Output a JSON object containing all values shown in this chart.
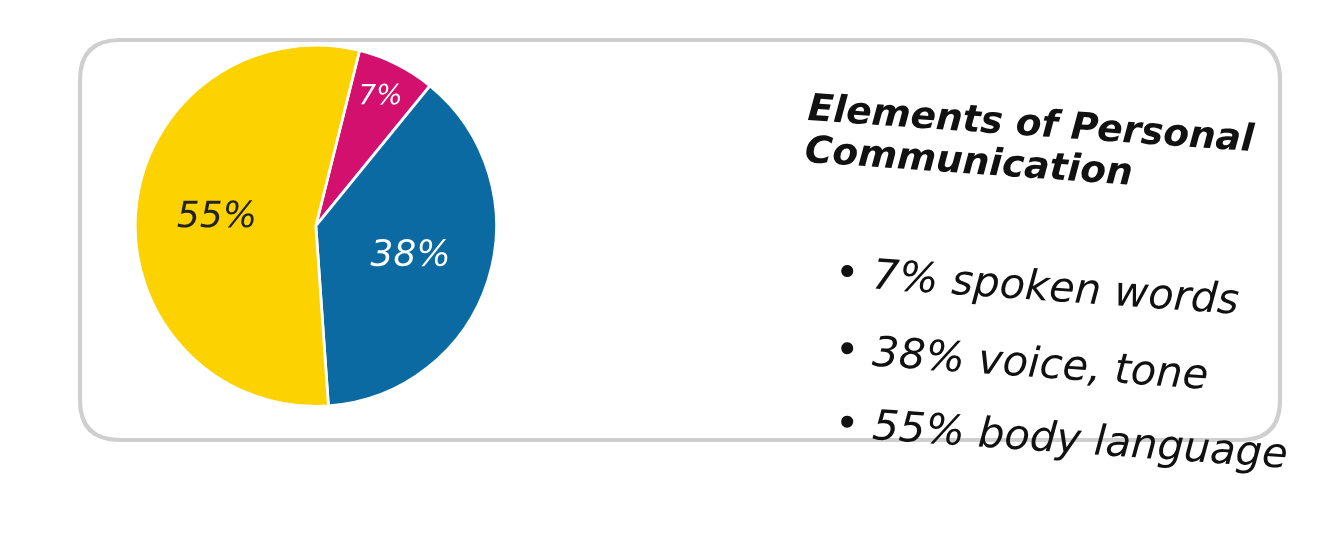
{
  "chart_data": {
    "type": "pie",
    "title": "Elements of Personal Communication",
    "categories": [
      null,
      null,
      null
    ],
    "annotations": [
      "• 7% spoken words",
      "• 38% voice, tone",
      "• 55% body language"
    ],
    "values": [
      7,
      38,
      55
    ],
    "colors": [
      "#d4106e",
      "#0b6aa2",
      "#fcd200"
    ],
    "value_labels": [
      "7%",
      "38%",
      "55%"
    ]
  }
}
